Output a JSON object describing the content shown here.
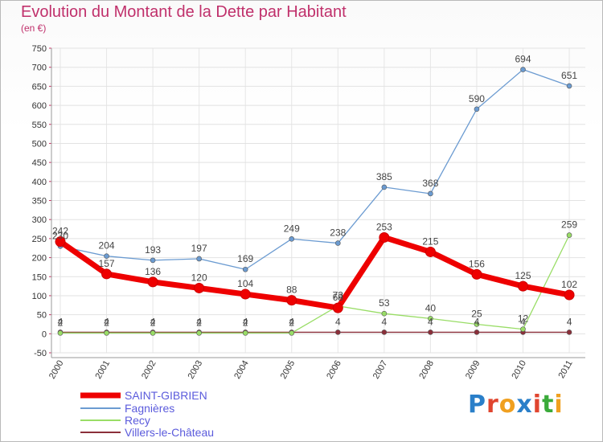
{
  "title": "Evolution du Montant de la Dette par Habitant",
  "unit": "(en €)",
  "logo": "Proxiti",
  "chart_data": {
    "type": "line",
    "title": "Evolution du Montant de la Dette par Habitant",
    "subtitle": "(en €)",
    "x": [
      "2000",
      "2001",
      "2002",
      "2003",
      "2004",
      "2005",
      "2006",
      "2007",
      "2008",
      "2009",
      "2010",
      "2011"
    ],
    "ylim": [
      -50,
      750
    ],
    "yticks": [
      -50,
      0,
      50,
      100,
      150,
      200,
      250,
      300,
      350,
      400,
      450,
      500,
      550,
      600,
      650,
      700,
      750
    ],
    "grid": true,
    "legend": "bottom-left",
    "series": [
      {
        "name": "SAINT-GIBRIEN",
        "color": "#ee0000",
        "values": [
          242,
          157,
          136,
          120,
          104,
          88,
          68,
          253,
          215,
          156,
          125,
          102
        ],
        "labels": [
          "242",
          "157",
          "136",
          "120",
          "104",
          "88",
          "68",
          "253",
          "215",
          "156",
          "125",
          "102"
        ]
      },
      {
        "name": "Fagnières",
        "color": "#6b9bd1",
        "values": [
          230,
          204,
          193,
          197,
          169,
          249,
          238,
          385,
          368,
          590,
          694,
          651
        ],
        "labels": [
          "230",
          "204",
          "193",
          "197",
          "169",
          "249",
          "238",
          "385",
          "368",
          "590",
          "694",
          "651"
        ]
      },
      {
        "name": "Recy",
        "color": "#99dd66",
        "values": [
          2,
          2,
          2,
          2,
          2,
          2,
          73,
          53,
          40,
          25,
          12,
          259
        ],
        "labels": [
          "2",
          "2",
          "2",
          "2",
          "2",
          "2",
          "73",
          "53",
          "40",
          "25",
          "12",
          "259"
        ]
      },
      {
        "name": "Villers-le-Château",
        "color": "#8b2f3a",
        "values": [
          4,
          4,
          4,
          4,
          4,
          4,
          4,
          4,
          4,
          4,
          4,
          4
        ],
        "labels": [
          "4",
          "4",
          "4",
          "4",
          "4",
          "4",
          "4",
          "4",
          "4",
          "4",
          "4",
          "4"
        ]
      }
    ]
  }
}
